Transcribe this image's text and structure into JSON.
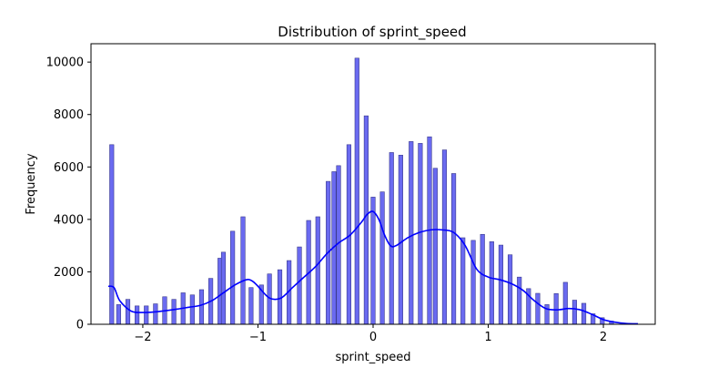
{
  "chart_data": {
    "type": "bar",
    "title": "Distribution of sprint_speed",
    "xlabel": "sprint_speed",
    "ylabel": "Frequency",
    "xlim": [
      -2.45,
      2.45
    ],
    "ylim": [
      0,
      10700
    ],
    "xticks": [
      -2,
      -1,
      0,
      1,
      2
    ],
    "xtick_labels": [
      "−2",
      "−1",
      "0",
      "1",
      "2"
    ],
    "yticks": [
      0,
      2000,
      4000,
      6000,
      8000,
      10000
    ],
    "ytick_labels": [
      "0",
      "2000",
      "4000",
      "6000",
      "8000",
      "10000"
    ],
    "grid": false,
    "bar_width": 0.036,
    "bar_color": "#6a6af0",
    "bar_edge_color": "#3a3a8c",
    "kde_color": "#0000ff",
    "bins": {
      "x": [
        -2.27,
        -2.21,
        -2.13,
        -2.05,
        -1.97,
        -1.89,
        -1.81,
        -1.73,
        -1.65,
        -1.57,
        -1.49,
        -1.41,
        -1.33,
        -1.3,
        -1.22,
        -1.13,
        -1.06,
        -0.97,
        -0.9,
        -0.81,
        -0.73,
        -0.64,
        -0.56,
        -0.48,
        -0.39,
        -0.34,
        -0.3,
        -0.21,
        -0.14,
        -0.06,
        0.0,
        0.08,
        0.16,
        0.24,
        0.33,
        0.41,
        0.49,
        0.54,
        0.62,
        0.7,
        0.78,
        0.87,
        0.95,
        1.03,
        1.11,
        1.19,
        1.27,
        1.35,
        1.43,
        1.51,
        1.59,
        1.67,
        1.75,
        1.83,
        1.91,
        1.99,
        2.07
      ],
      "values": [
        6850,
        750,
        950,
        700,
        700,
        780,
        1050,
        950,
        1200,
        1120,
        1320,
        1750,
        2520,
        2750,
        3550,
        4100,
        1400,
        1500,
        1920,
        2080,
        2430,
        2950,
        3960,
        4100,
        5450,
        5820,
        6050,
        6850,
        10150,
        7950,
        4850,
        5050,
        6550,
        6450,
        6970,
        6900,
        7150,
        5950,
        6650,
        5750,
        3300,
        3200,
        3430,
        3150,
        3020,
        2650,
        1800,
        1360,
        1180,
        750,
        1170,
        1600,
        920,
        800,
        400,
        250,
        120
      ]
    },
    "kde": {
      "x": [
        -2.3,
        -2.25,
        -2.2,
        -2.1,
        -2.0,
        -1.9,
        -1.8,
        -1.7,
        -1.6,
        -1.5,
        -1.4,
        -1.3,
        -1.2,
        -1.1,
        -1.05,
        -1.0,
        -0.9,
        -0.8,
        -0.7,
        -0.6,
        -0.5,
        -0.4,
        -0.3,
        -0.2,
        -0.1,
        -0.05,
        0.0,
        0.05,
        0.1,
        0.15,
        0.2,
        0.3,
        0.4,
        0.5,
        0.6,
        0.7,
        0.8,
        0.9,
        1.0,
        1.1,
        1.2,
        1.3,
        1.4,
        1.5,
        1.6,
        1.7,
        1.8,
        1.9,
        2.0,
        2.1,
        2.2,
        2.3
      ],
      "values": [
        1450,
        1400,
        900,
        500,
        450,
        470,
        520,
        580,
        650,
        720,
        900,
        1200,
        1500,
        1700,
        1650,
        1450,
        1000,
        1000,
        1400,
        1800,
        2200,
        2700,
        3100,
        3400,
        3900,
        4200,
        4300,
        4000,
        3400,
        3000,
        3000,
        3300,
        3500,
        3600,
        3600,
        3500,
        3000,
        2100,
        1800,
        1700,
        1550,
        1300,
        900,
        600,
        550,
        600,
        550,
        380,
        180,
        80,
        30,
        20
      ]
    }
  }
}
